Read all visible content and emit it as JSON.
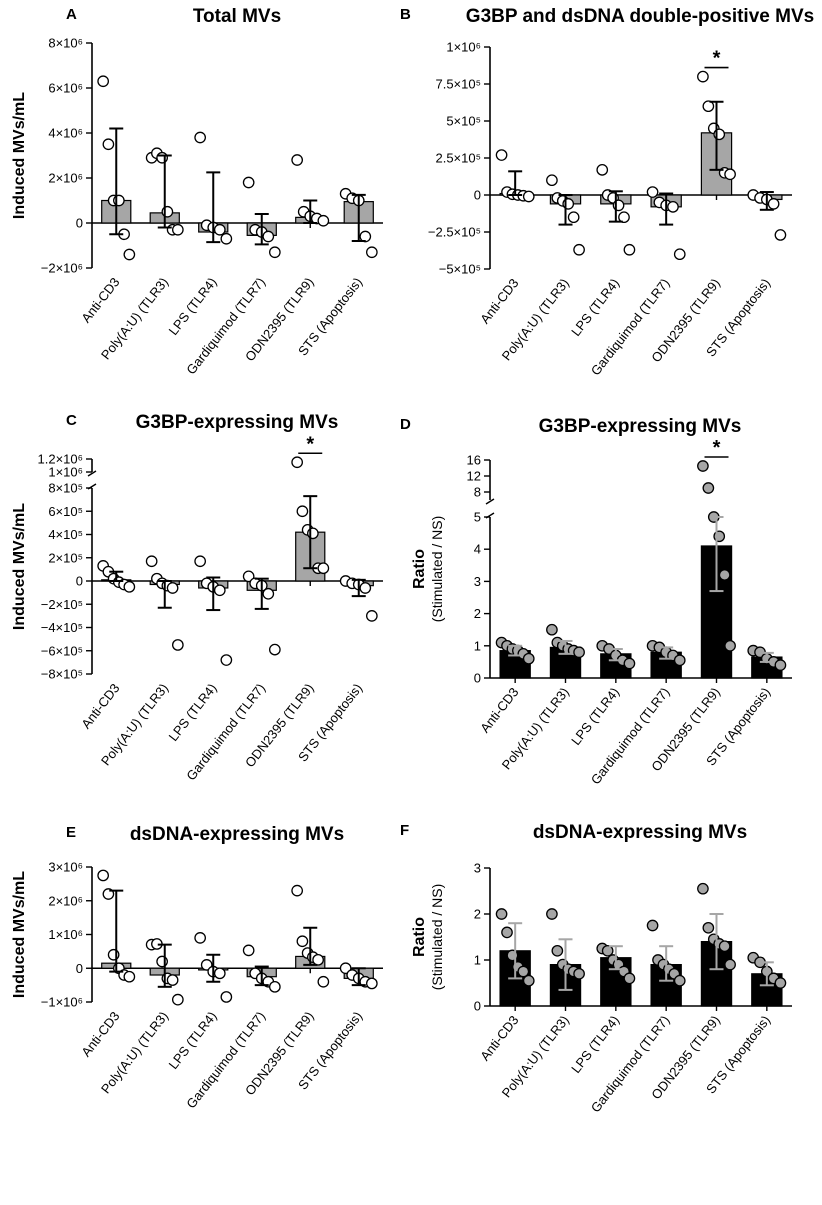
{
  "categories": [
    "Anti-CD3",
    "Poly(A:U) (TLR3)",
    "LPS (TLR4)",
    "Gardiquimod (TLR7)",
    "ODN2395 (TLR9)",
    "STS (Apoptosis)"
  ],
  "colors": {
    "gray_bar": "#a6a6a6",
    "black_bar": "#000000",
    "gray_point": "#a6a6a6",
    "white_point": "#ffffff",
    "gray_error": "#a6a6a6"
  },
  "chart_data": [
    {
      "id": "A",
      "panel_label": "A",
      "type": "bar",
      "title": "Total MVs",
      "ylabel": "Induced MVs/mL",
      "ylabel_sub": "",
      "categories": [
        "Anti-CD3",
        "Poly(A:U) (TLR3)",
        "LPS (TLR4)",
        "Gardiquimod (TLR7)",
        "ODN2395 (TLR9)",
        "STS (Apoptosis)"
      ],
      "ylim": [
        -2000000,
        8000000
      ],
      "yticks": [
        -2000000,
        0,
        2000000,
        4000000,
        6000000,
        8000000
      ],
      "ytick_labels": [
        "−2×10⁶",
        "0",
        "2×10⁶",
        "4×10⁶",
        "6×10⁶",
        "8×10⁶"
      ],
      "means": [
        1000000,
        450000,
        -400000,
        -550000,
        250000,
        950000
      ],
      "error_upper": [
        4200000,
        3000000,
        2250000,
        400000,
        1000000,
        1250000
      ],
      "error_lower": [
        -500000,
        -200000,
        -850000,
        -950000,
        0,
        -800000
      ],
      "points": [
        [
          6300000,
          3500000,
          1000000,
          1000000,
          -500000,
          -1400000
        ],
        [
          2900000,
          3100000,
          2900000,
          500000,
          -300000,
          -300000
        ],
        [
          3800000,
          -100000,
          -200000,
          -300000,
          -700000
        ],
        [
          1800000,
          -300000,
          -400000,
          -600000,
          -1300000
        ],
        [
          2800000,
          500000,
          300000,
          200000,
          100000
        ],
        [
          1300000,
          1100000,
          1000000,
          -600000,
          -1300000
        ]
      ],
      "bar_style": "gray",
      "point_style": "white",
      "error_style": "black",
      "significance": [],
      "axis_break": null
    },
    {
      "id": "B",
      "panel_label": "B",
      "type": "bar",
      "title": "G3BP and dsDNA double-positive MVs",
      "ylabel": "",
      "ylabel_sub": "",
      "categories": [
        "Anti-CD3",
        "Poly(A:U) (TLR3)",
        "LPS (TLR4)",
        "Gardiquimod (TLR7)",
        "ODN2395 (TLR9)",
        "STS (Apoptosis)"
      ],
      "ylim": [
        -500000,
        1000000
      ],
      "yticks": [
        -500000,
        -250000,
        0,
        250000,
        500000,
        750000,
        1000000
      ],
      "ytick_labels": [
        "−5×10⁵",
        "−2.5×10⁵",
        "0",
        "2.5×10⁵",
        "5×10⁵",
        "7.5×10⁵",
        "1×10⁶"
      ],
      "means": [
        10000,
        -60000,
        -60000,
        -80000,
        420000,
        -30000
      ],
      "error_upper": [
        160000,
        0,
        25000,
        10000,
        630000,
        20000
      ],
      "error_lower": [
        0,
        -200000,
        -180000,
        -200000,
        170000,
        -100000
      ],
      "points": [
        [
          270000,
          20000,
          5000,
          0,
          -5000,
          -10000
        ],
        [
          100000,
          -20000,
          -40000,
          -60000,
          -150000,
          -370000
        ],
        [
          170000,
          0,
          -20000,
          -70000,
          -150000,
          -370000
        ],
        [
          20000,
          -50000,
          -70000,
          -80000,
          -400000
        ],
        [
          800000,
          600000,
          450000,
          410000,
          150000,
          140000
        ],
        [
          0,
          -20000,
          -30000,
          -60000,
          -270000
        ]
      ],
      "bar_style": "gray",
      "point_style": "white",
      "error_style": "black",
      "significance": [
        {
          "index": 4,
          "label": "*"
        }
      ],
      "axis_break": null
    },
    {
      "id": "C",
      "panel_label": "C",
      "type": "bar",
      "title": "G3BP-expressing MVs",
      "ylabel": "Induced MVs/mL",
      "ylabel_sub": "",
      "categories": [
        "Anti-CD3",
        "Poly(A:U) (TLR3)",
        "LPS (TLR4)",
        "Gardiquimod (TLR7)",
        "ODN2395 (TLR9)",
        "STS (Apoptosis)"
      ],
      "ylim": [
        -800000,
        1200000
      ],
      "yticks": [
        -800000,
        -600000,
        -400000,
        -200000,
        0,
        200000,
        400000,
        600000,
        800000
      ],
      "ytick_labels": [
        "−8×10⁵",
        "−6×10⁵",
        "−4×10⁵",
        "−2×10⁵",
        "0",
        "2×10⁵",
        "4×10⁵",
        "6×10⁵",
        "8×10⁵"
      ],
      "upper_ticks": [
        1000000,
        1200000
      ],
      "upper_tick_labels": [
        "1×10⁶",
        "1.2×10⁶"
      ],
      "means": [
        10000,
        -30000,
        -60000,
        -80000,
        420000,
        -40000
      ],
      "error_upper": [
        80000,
        0,
        30000,
        20000,
        730000,
        10000
      ],
      "error_lower": [
        0,
        -230000,
        -250000,
        -240000,
        110000,
        -130000
      ],
      "points": [
        [
          130000,
          80000,
          20000,
          -10000,
          -30000,
          -50000
        ],
        [
          170000,
          20000,
          -20000,
          -40000,
          -60000,
          -550000
        ],
        [
          170000,
          -20000,
          -50000,
          -80000,
          -680000
        ],
        [
          40000,
          -20000,
          -40000,
          -110000,
          -590000
        ],
        [
          1150000,
          600000,
          440000,
          410000,
          110000,
          110000
        ],
        [
          0,
          -20000,
          -30000,
          -60000,
          -300000
        ]
      ],
      "bar_style": "gray",
      "point_style": "white",
      "error_style": "black",
      "significance": [
        {
          "index": 4,
          "label": "*"
        }
      ],
      "axis_break": {
        "lower_max": 800000,
        "upper_min": 1000000,
        "upper_max": 1200000
      }
    },
    {
      "id": "D",
      "panel_label": "D",
      "type": "bar",
      "title": "G3BP-expressing MVs",
      "ylabel": "Ratio",
      "ylabel_sub": "(Stimulated / NS)",
      "categories": [
        "Anti-CD3",
        "Poly(A:U) (TLR3)",
        "LPS (TLR4)",
        "Gardiquimod (TLR7)",
        "ODN2395 (TLR9)",
        "STS (Apoptosis)"
      ],
      "ylim": [
        0,
        16
      ],
      "yticks": [
        0,
        1,
        2,
        3,
        4,
        5
      ],
      "ytick_labels": [
        "0",
        "1",
        "2",
        "3",
        "4",
        "5"
      ],
      "upper_ticks": [
        8,
        12,
        16
      ],
      "upper_tick_labels": [
        "8",
        "12",
        "16"
      ],
      "means": [
        0.85,
        0.95,
        0.75,
        0.8,
        4.1,
        0.65
      ],
      "error_upper": [
        1.0,
        1.15,
        0.9,
        0.95,
        5.5,
        0.78
      ],
      "error_lower": [
        0.7,
        0.75,
        0.55,
        0.6,
        2.7,
        0.5
      ],
      "points": [
        [
          1.1,
          1.0,
          0.9,
          0.85,
          0.75,
          0.6
        ],
        [
          1.5,
          1.1,
          1.0,
          0.9,
          0.85,
          0.8
        ],
        [
          1.0,
          0.9,
          0.7,
          0.55,
          0.45
        ],
        [
          1.0,
          0.95,
          0.8,
          0.7,
          0.55
        ],
        [
          14.5,
          9.0,
          5.1,
          4.4,
          3.2,
          1.0
        ],
        [
          0.85,
          0.8,
          0.6,
          0.5,
          0.4
        ]
      ],
      "bar_style": "black",
      "point_style": "gray",
      "error_style": "gray",
      "significance": [
        {
          "index": 4,
          "label": "*"
        }
      ],
      "axis_break": {
        "lower_max": 5,
        "upper_min": 6,
        "upper_max": 16
      }
    },
    {
      "id": "E",
      "panel_label": "E",
      "type": "bar",
      "title": "dsDNA-expressing MVs",
      "ylabel": "Induced MVs/mL",
      "ylabel_sub": "",
      "categories": [
        "Anti-CD3",
        "Poly(A:U) (TLR3)",
        "LPS (TLR4)",
        "Gardiquimod (TLR7)",
        "ODN2395 (TLR9)",
        "STS (Apoptosis)"
      ],
      "ylim": [
        -1000000,
        3000000
      ],
      "yticks": [
        -1000000,
        0,
        1000000,
        2000000,
        3000000
      ],
      "ytick_labels": [
        "−1×10⁶",
        "0",
        "1×10⁶",
        "2×10⁶",
        "3×10⁶"
      ],
      "means": [
        150000,
        -200000,
        -50000,
        -250000,
        350000,
        -300000
      ],
      "error_upper": [
        2300000,
        700000,
        400000,
        50000,
        1200000,
        0
      ],
      "error_lower": [
        -100000,
        -550000,
        -400000,
        -500000,
        100000,
        -500000
      ],
      "points": [
        [
          2750000,
          2200000,
          400000,
          0,
          -200000,
          -250000
        ],
        [
          700000,
          720000,
          200000,
          -300000,
          -350000,
          -930000
        ],
        [
          900000,
          100000,
          -100000,
          -150000,
          -850000
        ],
        [
          530000,
          -150000,
          -300000,
          -400000,
          -550000
        ],
        [
          2300000,
          800000,
          450000,
          330000,
          250000,
          -400000
        ],
        [
          0,
          -200000,
          -300000,
          -400000,
          -450000
        ]
      ],
      "bar_style": "gray",
      "point_style": "white",
      "error_style": "black",
      "significance": [],
      "axis_break": null
    },
    {
      "id": "F",
      "panel_label": "F",
      "type": "bar",
      "title": "dsDNA-expressing MVs",
      "ylabel": "Ratio",
      "ylabel_sub": "(Stimulated / NS)",
      "categories": [
        "Anti-CD3",
        "Poly(A:U) (TLR3)",
        "LPS (TLR4)",
        "Gardiquimod (TLR7)",
        "ODN2395 (TLR9)",
        "STS (Apoptosis)"
      ],
      "ylim": [
        0,
        3
      ],
      "yticks": [
        0,
        1,
        2,
        3
      ],
      "ytick_labels": [
        "0",
        "1",
        "2",
        "3"
      ],
      "means": [
        1.2,
        0.9,
        1.05,
        0.9,
        1.4,
        0.7
      ],
      "error_upper": [
        1.8,
        1.45,
        1.3,
        1.3,
        2.0,
        0.95
      ],
      "error_lower": [
        0.6,
        0.35,
        0.8,
        0.55,
        0.8,
        0.45
      ],
      "points": [
        [
          2.0,
          1.6,
          1.1,
          0.85,
          0.75,
          0.55
        ],
        [
          2.0,
          1.2,
          0.9,
          0.8,
          0.75,
          0.7
        ],
        [
          1.25,
          1.2,
          1.0,
          0.9,
          0.75,
          0.6
        ],
        [
          1.75,
          1.0,
          0.9,
          0.8,
          0.7,
          0.55
        ],
        [
          2.55,
          1.7,
          1.45,
          1.35,
          1.3,
          0.9
        ],
        [
          1.05,
          0.95,
          0.75,
          0.6,
          0.5
        ]
      ],
      "bar_style": "black",
      "point_style": "gray",
      "error_style": "gray",
      "significance": [],
      "axis_break": null
    }
  ]
}
